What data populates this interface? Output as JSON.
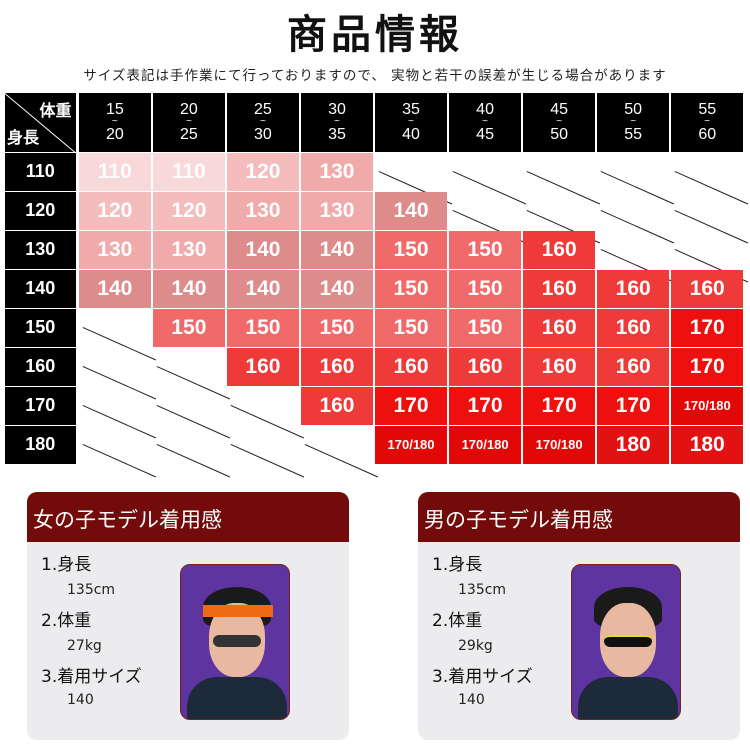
{
  "title": "商品情報",
  "note": "サイズ表記は手作業にて行っておりますので、 実物と若干の誤差が生じる場合があります",
  "table": {
    "corner_weight": "体重",
    "corner_height": "身長",
    "weights": [
      [
        "15",
        "20"
      ],
      [
        "20",
        "25"
      ],
      [
        "25",
        "30"
      ],
      [
        "30",
        "35"
      ],
      [
        "35",
        "40"
      ],
      [
        "40",
        "45"
      ],
      [
        "45",
        "50"
      ],
      [
        "50",
        "55"
      ],
      [
        "55",
        "60"
      ]
    ],
    "tilde": "~",
    "rows": [
      {
        "height": "110",
        "sizes": [
          "110",
          "110",
          "120",
          "130",
          "",
          "",
          "",
          "",
          ""
        ]
      },
      {
        "height": "120",
        "sizes": [
          "120",
          "120",
          "130",
          "130",
          "140",
          "",
          "",
          "",
          ""
        ]
      },
      {
        "height": "130",
        "sizes": [
          "130",
          "130",
          "140",
          "140",
          "150",
          "150",
          "160",
          "",
          ""
        ]
      },
      {
        "height": "140",
        "sizes": [
          "140",
          "140",
          "140",
          "140",
          "150",
          "150",
          "160",
          "160",
          "160"
        ]
      },
      {
        "height": "150",
        "sizes": [
          "",
          "150",
          "150",
          "150",
          "150",
          "150",
          "160",
          "160",
          "170"
        ]
      },
      {
        "height": "160",
        "sizes": [
          "",
          "",
          "160",
          "160",
          "160",
          "160",
          "160",
          "160",
          "170"
        ]
      },
      {
        "height": "170",
        "sizes": [
          "",
          "",
          "",
          "160",
          "170",
          "170",
          "170",
          "170",
          "170/180"
        ]
      },
      {
        "height": "180",
        "sizes": [
          "",
          "",
          "",
          "",
          "170/180",
          "170/180",
          "170/180",
          "180",
          "180"
        ]
      }
    ],
    "colors": {
      "110": "#f8d8d8",
      "120": "#f4bcbc",
      "130": "#f0aaaa",
      "140": "#dd8b8b",
      "150": "#f06a6a",
      "160": "#ef3a3a",
      "170": "#ee0f0f",
      "170/180": "#e20808",
      "180": "#e31212"
    }
  },
  "girl": {
    "title": "女の子モデル着用感",
    "height_label": "1.身長",
    "height": "135cm",
    "weight_label": "2.体重",
    "weight": "27kg",
    "size_label": "3.着用サイズ",
    "size": "140"
  },
  "boy": {
    "title": "男の子モデル着用感",
    "height_label": "1.身長",
    "height": "135cm",
    "weight_label": "2.体重",
    "weight": "29kg",
    "size_label": "3.着用サイズ",
    "size": "140"
  }
}
